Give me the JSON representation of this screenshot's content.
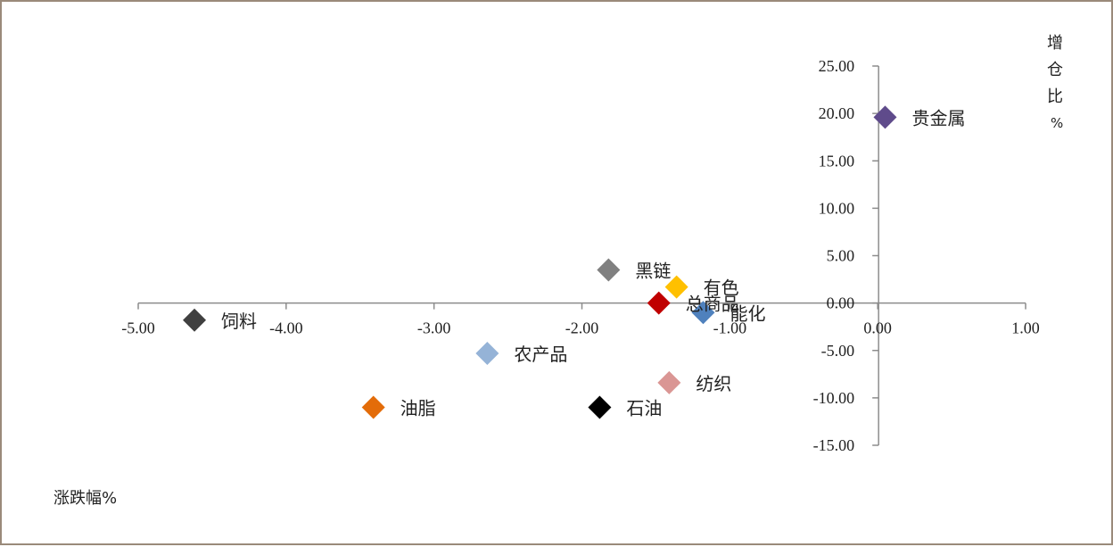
{
  "chart_data": {
    "type": "scatter",
    "xlabel": "涨跌幅%",
    "ylabel": [
      "增",
      "仓",
      "比",
      "%"
    ],
    "xlim": [
      -5.0,
      1.0
    ],
    "ylim": [
      -15.0,
      25.0
    ],
    "x_ticks": [
      "-5.00",
      "-4.00",
      "-3.00",
      "-2.00",
      "-1.00",
      "0.00",
      "1.00"
    ],
    "y_ticks": [
      "25.00",
      "20.00",
      "15.00",
      "10.00",
      "5.00",
      "0.00",
      "-5.00",
      "-10.00",
      "-15.00"
    ],
    "grid": false,
    "marker": "diamond",
    "points": [
      {
        "label": "贵金属",
        "x": 0.05,
        "y": 19.6,
        "color": "#5f4b8b"
      },
      {
        "label": "黑链",
        "x": -1.82,
        "y": 3.5,
        "color": "#808080"
      },
      {
        "label": "有色",
        "x": -1.36,
        "y": 1.7,
        "color": "#ffc000"
      },
      {
        "label": "总商品",
        "x": -1.48,
        "y": 0.0,
        "color": "#c00000"
      },
      {
        "label": "能化",
        "x": -1.18,
        "y": -1.0,
        "color": "#4f81bd"
      },
      {
        "label": "饲料",
        "x": -4.62,
        "y": -1.8,
        "color": "#404040"
      },
      {
        "label": "农产品",
        "x": -2.64,
        "y": -5.3,
        "color": "#95b3d7"
      },
      {
        "label": "纺织",
        "x": -1.41,
        "y": -8.4,
        "color": "#da9694"
      },
      {
        "label": "油脂",
        "x": -3.41,
        "y": -11.0,
        "color": "#e36c09"
      },
      {
        "label": "石油",
        "x": -1.88,
        "y": -11.0,
        "color": "#000000"
      }
    ]
  }
}
